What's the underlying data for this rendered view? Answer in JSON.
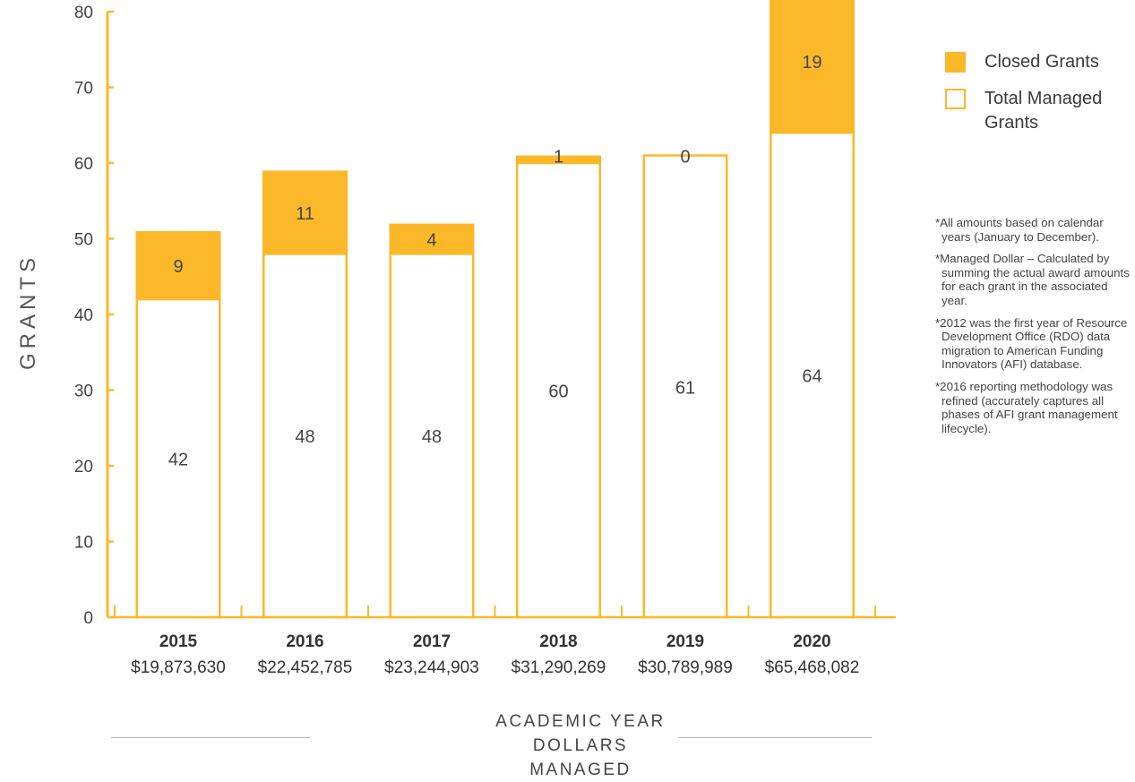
{
  "chart_data": {
    "type": "bar",
    "stacked": true,
    "categories": [
      "2015",
      "2016",
      "2017",
      "2018",
      "2019",
      "2020"
    ],
    "dollars_managed": [
      "$19,873,630",
      "$22,452,785",
      "$23,244,903",
      "$31,290,269",
      "$30,789,989",
      "$65,468,082"
    ],
    "series": [
      {
        "name": "Total Managed Grants",
        "values": [
          42,
          48,
          48,
          60,
          61,
          64
        ],
        "color": "#ffffff",
        "stroke": "#FBB829"
      },
      {
        "name": "Closed Grants",
        "values": [
          9,
          11,
          4,
          1,
          0,
          19
        ],
        "color": "#FBB829"
      }
    ],
    "ylabel": "GRANTS",
    "xlabel": [
      "ACADEMIC YEAR",
      "DOLLARS MANAGED"
    ],
    "ylim": [
      0,
      80
    ],
    "yticks": [
      0,
      10,
      20,
      30,
      40,
      50,
      60,
      70,
      80
    ],
    "grid": false,
    "legend_position": "top-right"
  },
  "legend": {
    "closed_label": "Closed Grants",
    "total_label": "Total Managed Grants"
  },
  "notes": [
    "*All amounts based on calendar years (January to December).",
    "*Managed Dollar – Calculated by summing the actual award amounts for each grant in the associated year.",
    "*2012 was the first year of Resource Development Office (RDO) data migration to American Funding Innovators (AFI) database.",
    "*2016 reporting methodology was refined (accurately captures all phases of AFI grant management lifecycle)."
  ],
  "colors": {
    "accent": "#FBB829",
    "text": "#3a3a3a",
    "rule": "#b5b5b5"
  }
}
